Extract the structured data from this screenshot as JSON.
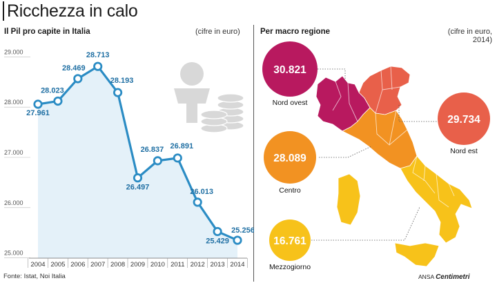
{
  "title": "Ricchezza in calo",
  "left_panel": {
    "subtitle": "Il Pil pro capite in Italia",
    "unit_note": "(cifre in euro)"
  },
  "right_panel": {
    "subtitle": "Per macro regione",
    "unit_note_line1": "(cifre in euro,",
    "unit_note_line2": "2014)"
  },
  "source": "Fonte: Istat, Noi Italia",
  "credit_prefix": "ANSA",
  "credit_brand": "Centimetri",
  "colors": {
    "line": "#2b8cc4",
    "area": "#e4f1f9",
    "axis_text": "#555555",
    "grid": "#bbbbbb",
    "nord_ovest": "#b8195f",
    "nord_est": "#e8604a",
    "centro": "#f29222",
    "mezzogiorno": "#f7c21a",
    "icon_gray": "#d8d8d8"
  },
  "chart_data": [
    {
      "type": "line",
      "title": "Il Pil pro capite in Italia",
      "x": [
        "2004",
        "2005",
        "2006",
        "2007",
        "2008",
        "2009",
        "2010",
        "2011",
        "2012",
        "2013",
        "2014"
      ],
      "series": [
        {
          "values": [
            27961,
            28023,
            28469,
            28713,
            28193,
            26497,
            26837,
            26891,
            26013,
            25429,
            25256
          ]
        }
      ],
      "labels": [
        "27.961",
        "28.023",
        "28.469",
        "28.713",
        "28.193",
        "26.497",
        "26.837",
        "26.891",
        "26.013",
        "25.429",
        "25.256"
      ],
      "yticks": [
        25000,
        26000,
        27000,
        28000,
        29000
      ],
      "ytick_labels": [
        "25.000",
        "26.000",
        "27.000",
        "28.000",
        "29.000"
      ],
      "ylim": [
        24900,
        29100
      ],
      "grid": false,
      "area_fill": true
    },
    {
      "type": "bubble",
      "title": "Per macro regione",
      "categories": [
        "Nord ovest",
        "Nord est",
        "Centro",
        "Mezzogiorno"
      ],
      "values": [
        30821,
        29734,
        28089,
        16761
      ],
      "value_labels": [
        "30.821",
        "29.734",
        "28.089",
        "16.761"
      ]
    }
  ]
}
